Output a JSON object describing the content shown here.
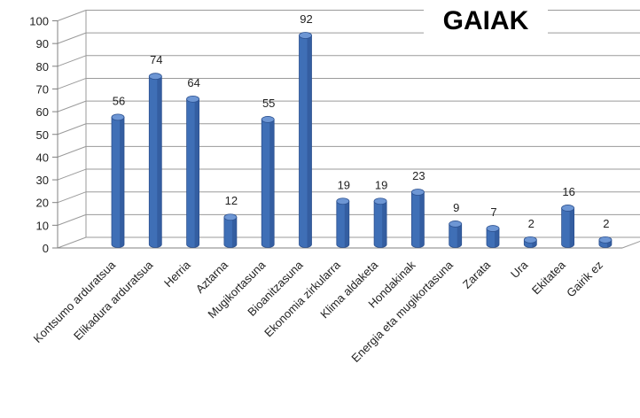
{
  "chart_data": {
    "type": "bar",
    "title": "GAIAK",
    "categories": [
      "Kontsumo arduratsua",
      "Elikadura arduratsua",
      "Herria",
      "Aztarna",
      "Mugikortasuna",
      "Bioanitzasuna",
      "Ekonomia zirkularra",
      "Klima aldaketa",
      "Hondakinak",
      "Energia eta mugikortasuna",
      "Zarata",
      "Ura",
      "Ekitatea",
      "Gairik ez"
    ],
    "values": [
      56,
      74,
      64,
      12,
      55,
      92,
      19,
      19,
      23,
      9,
      7,
      2,
      16,
      2
    ],
    "yticks": [
      "0",
      "10",
      "20",
      "30",
      "40",
      "50",
      "60",
      "70",
      "80",
      "90",
      "100"
    ],
    "ylim": [
      0,
      100
    ],
    "grid": true,
    "legend": "none",
    "bar_color": "#3f6fb6",
    "bar_top_color": "#6d96d4",
    "bar_side_color": "#2c5190"
  }
}
